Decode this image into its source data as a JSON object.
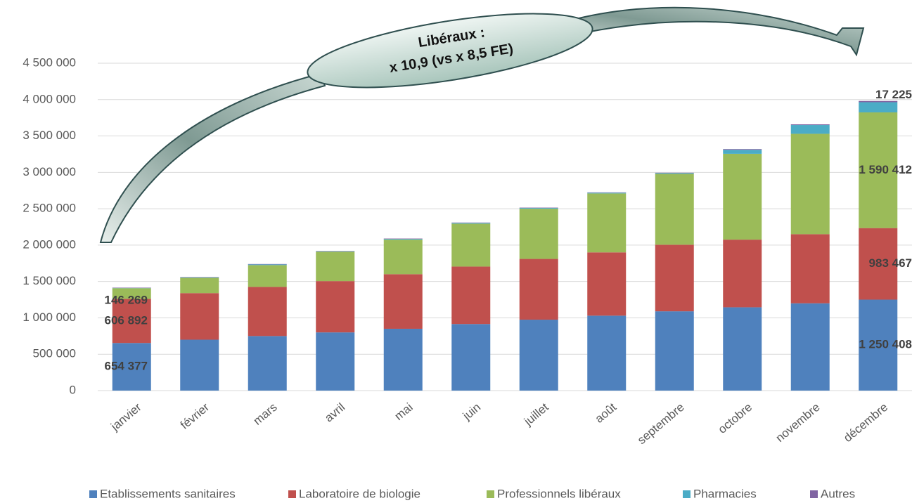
{
  "chart_data": {
    "type": "stacked_bar",
    "categories": [
      "janvier",
      "février",
      "mars",
      "avril",
      "mai",
      "juin",
      "juillet",
      "août",
      "septembre",
      "octobre",
      "novembre",
      "décembre"
    ],
    "series": [
      {
        "name": "Etablissements sanitaires",
        "color": "#4f81bd",
        "values": [
          654377,
          700000,
          750000,
          800000,
          850000,
          915000,
          975000,
          1030000,
          1090000,
          1145000,
          1200000,
          1250408
        ],
        "value_labels": [
          "654 377",
          null,
          null,
          null,
          null,
          null,
          null,
          null,
          null,
          null,
          null,
          "1 250 408"
        ]
      },
      {
        "name": "Laboratoire de biologie",
        "color": "#c0504d",
        "values": [
          606892,
          640000,
          675000,
          705000,
          750000,
          790000,
          835000,
          870000,
          915000,
          930000,
          950000,
          983467
        ],
        "value_labels": [
          "606 892",
          null,
          null,
          null,
          null,
          null,
          null,
          null,
          null,
          null,
          null,
          "983 467"
        ]
      },
      {
        "name": "Professionnels libéraux",
        "color": "#9bbb59",
        "values": [
          146269,
          210000,
          300000,
          405000,
          475000,
          590000,
          690000,
          810000,
          975000,
          1180000,
          1380000,
          1590412
        ],
        "value_labels": [
          "146 269",
          null,
          null,
          null,
          null,
          null,
          null,
          null,
          null,
          null,
          null,
          "1 590 412"
        ]
      },
      {
        "name": "Pharmacies",
        "color": "#4bacc6",
        "values": [
          3000,
          5000,
          10000,
          5000,
          10000,
          10000,
          10000,
          10000,
          10000,
          55000,
          120000,
          140000
        ]
      },
      {
        "name": "Autres",
        "color": "#8064a2",
        "values": [
          5000,
          5000,
          5000,
          5000,
          5000,
          5000,
          5000,
          5000,
          5000,
          10000,
          10000,
          17225
        ],
        "value_labels": [
          null,
          null,
          null,
          null,
          null,
          null,
          null,
          null,
          null,
          null,
          null,
          "17 225"
        ]
      }
    ],
    "ylim": [
      0,
      4500000
    ],
    "yticks": [
      0,
      {
        "value": 500000,
        "label": "500 000"
      },
      {
        "value": 1000000,
        "label": "1 000 000"
      },
      {
        "value": 1500000,
        "label": "1 500 000"
      },
      {
        "value": 2000000,
        "label": "2 000 000"
      },
      {
        "value": 2500000,
        "label": "2 500 000"
      },
      {
        "value": 3000000,
        "label": "3 000 000"
      },
      {
        "value": 3500000,
        "label": "3 500 000"
      },
      {
        "value": 4000000,
        "label": "4 000 000"
      },
      {
        "value": 4500000,
        "label": {
          "value": 4500000,
          "label": "4 500 000"
        }
      }
    ],
    "grid": true,
    "annotation": [
      "Libéraux :",
      "x 10,9 (vs x 8,5 FE)"
    ]
  }
}
